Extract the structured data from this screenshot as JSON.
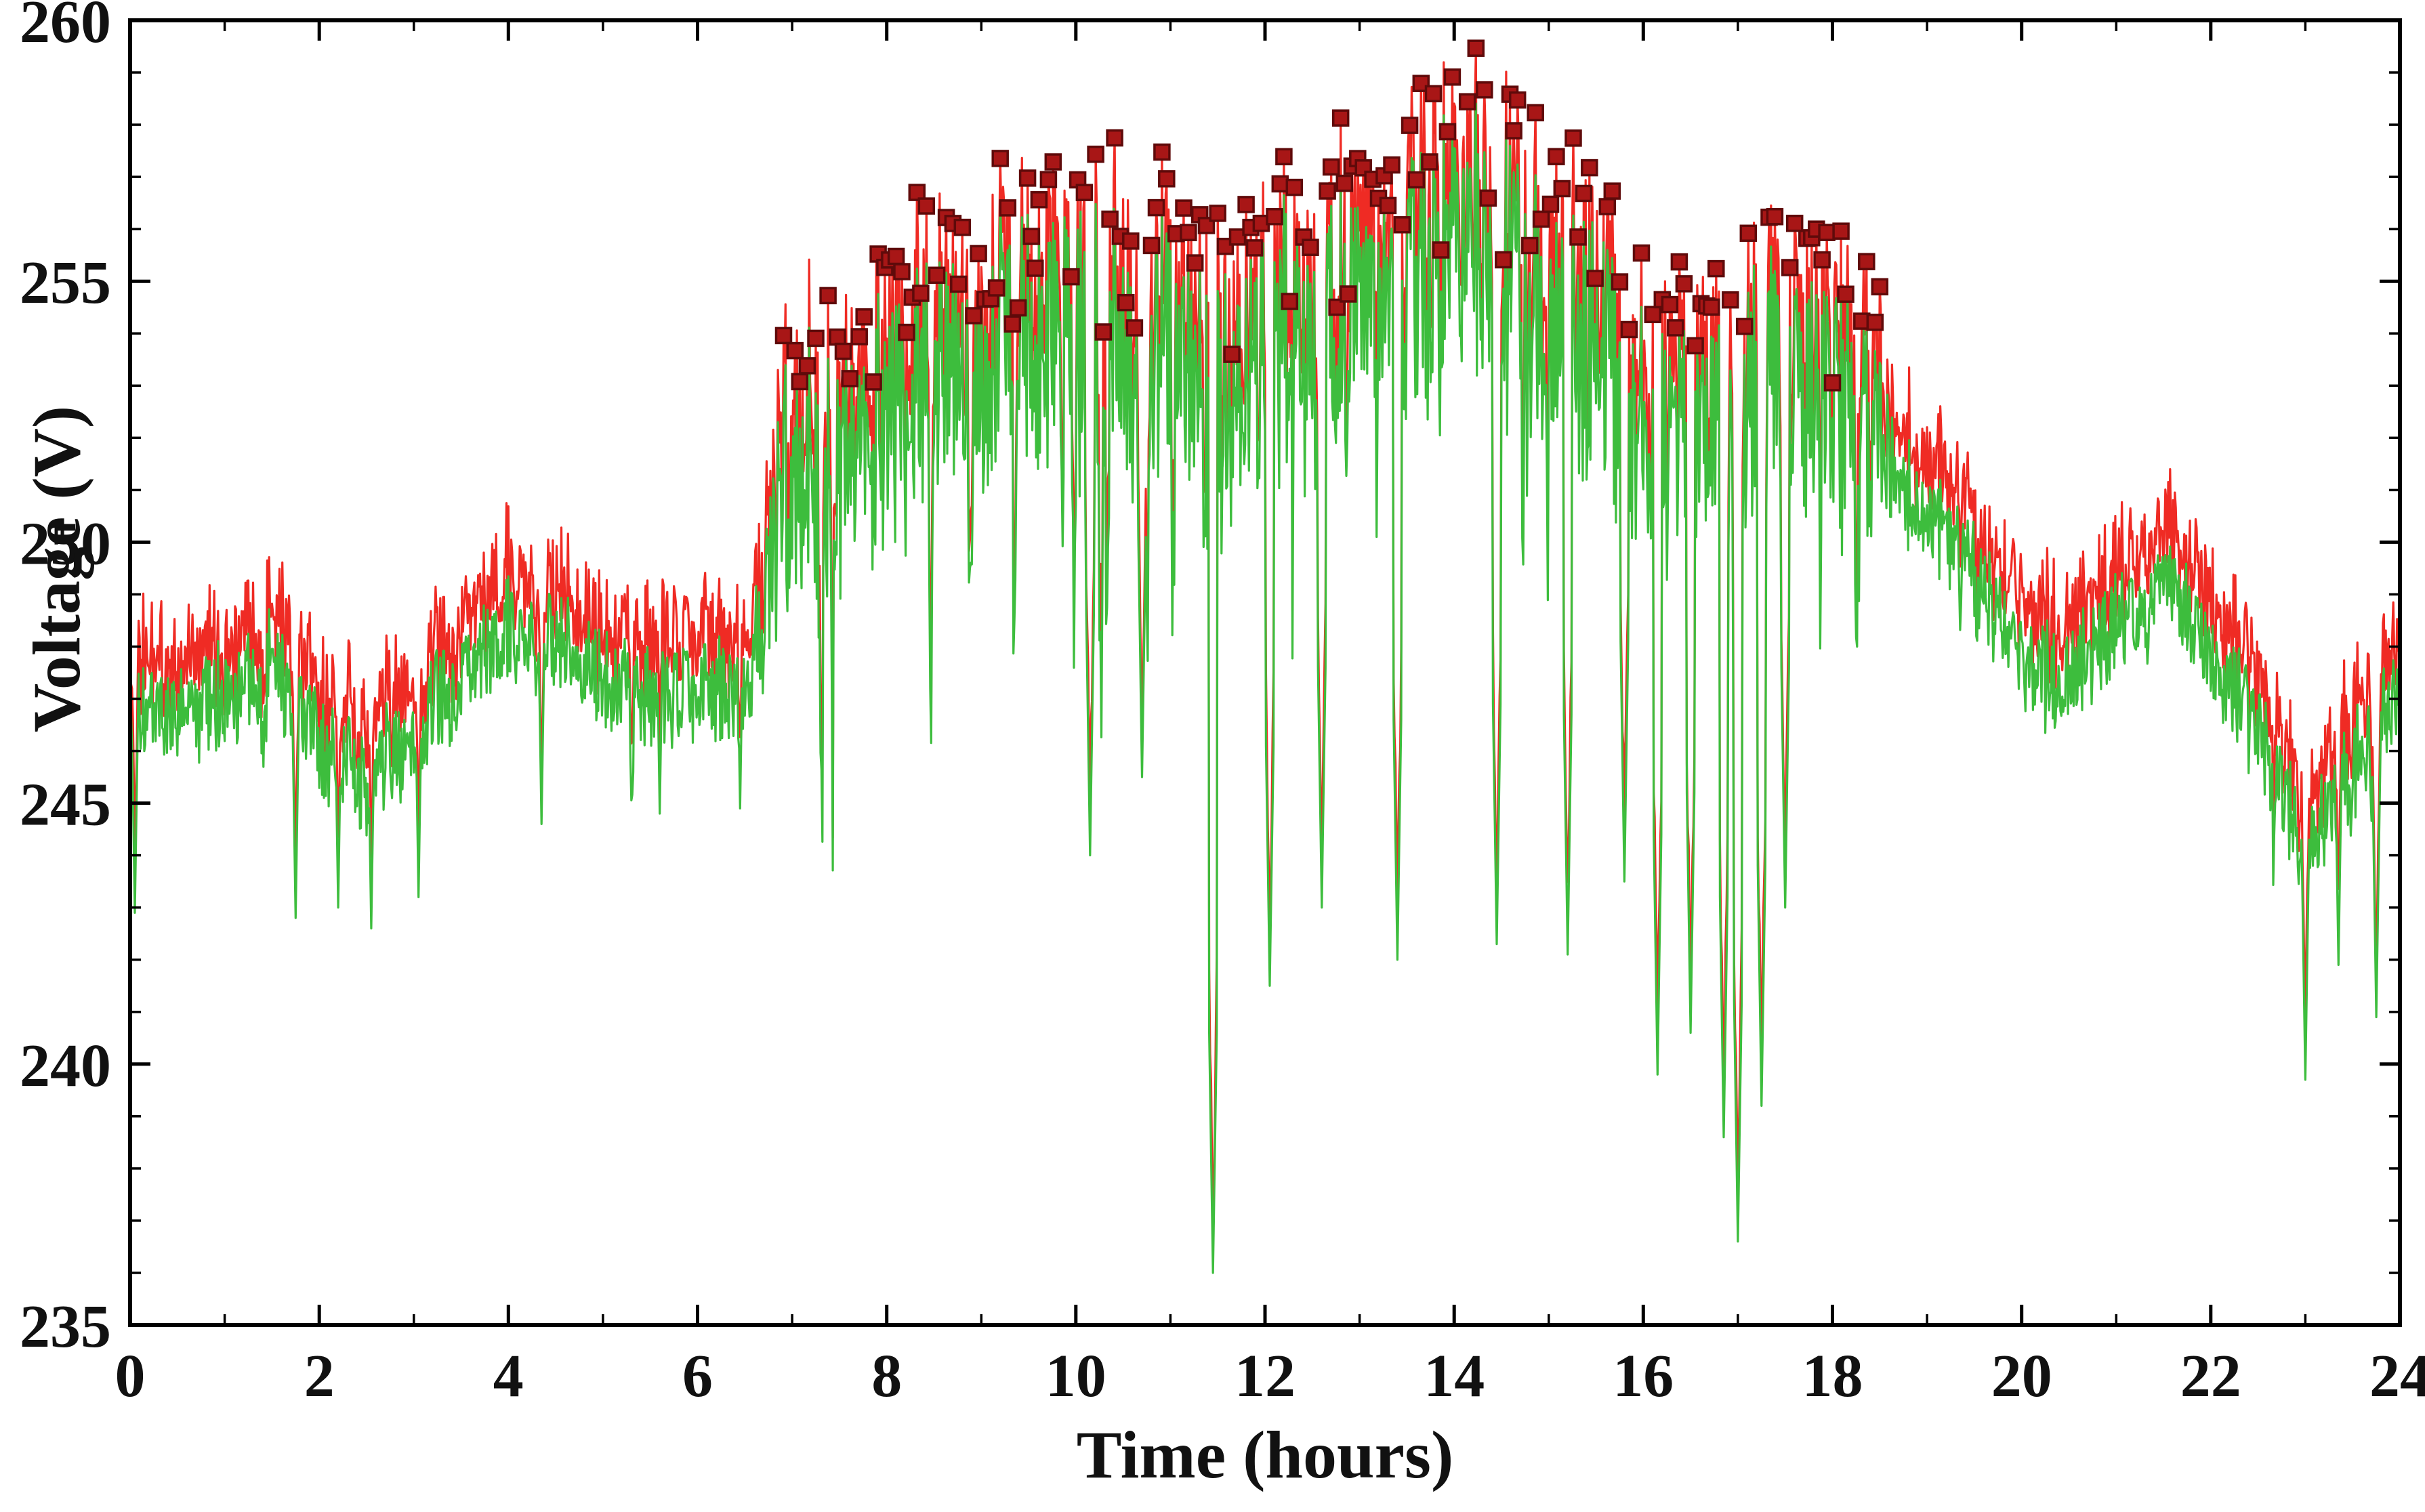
{
  "figure": {
    "background": "#ffffff",
    "frame_color": "#000000",
    "tick_color": "#000000",
    "label_color": "#111111"
  },
  "chart_data": {
    "type": "line",
    "title": "",
    "xlabel": "Time (hours)",
    "ylabel": "Voltage (V)",
    "xlim": [
      0,
      24
    ],
    "ylim": [
      235,
      260
    ],
    "grid": false,
    "legend": "none",
    "xticks": {
      "major": [
        0,
        2,
        4,
        6,
        8,
        10,
        12,
        14,
        16,
        18,
        20,
        22,
        24
      ],
      "minor_step": 1
    },
    "yticks": {
      "major": [
        235,
        240,
        245,
        250,
        255,
        260
      ],
      "minor_step": 1
    },
    "series": [
      {
        "name": "upper-envelope-line",
        "color": "#ef2b24",
        "width": 3.2
      },
      {
        "name": "voltage-line",
        "color": "#3dbd3d",
        "width": 3.2
      },
      {
        "name": "peak-markers",
        "color": "#a81616",
        "edge": "#5f0a0a",
        "shape": "square",
        "size": 22,
        "threshold": 253.0,
        "x_range": [
          6.9,
          18.55
        ]
      }
    ],
    "baseline": {
      "x": [
        0,
        0.5,
        1,
        1.5,
        2,
        2.5,
        3,
        3.5,
        4,
        4.5,
        5,
        5.5,
        6,
        6.5,
        7,
        7.5,
        8,
        8.5,
        9,
        9.5,
        10,
        10.5,
        11,
        11.5,
        12,
        12.5,
        13,
        13.5,
        14,
        14.5,
        15,
        15.5,
        16,
        16.5,
        17,
        17.5,
        18,
        18.5,
        19,
        19.5,
        20,
        20.5,
        21,
        21.5,
        22,
        22.5,
        23,
        23.5,
        24
      ],
      "v": [
        246.8,
        246.6,
        247.0,
        247.6,
        246.2,
        245.3,
        246.4,
        247.3,
        248.3,
        248.0,
        247.4,
        246.9,
        247.2,
        247.0,
        251.2,
        250.6,
        252.4,
        253.2,
        253.5,
        254.3,
        253.8,
        253.2,
        253.8,
        252.6,
        254.2,
        253.8,
        254.3,
        254.9,
        255.8,
        255.2,
        254.3,
        253.4,
        252.4,
        251.9,
        252.3,
        253.3,
        252.6,
        251.8,
        250.4,
        249.7,
        247.5,
        247.4,
        248.3,
        249.4,
        247.9,
        246.4,
        244.1,
        245.6,
        247.4
      ]
    },
    "noise": {
      "dt": 0.01,
      "base_amp": 1.2,
      "mid_amp": 3.2,
      "mid_start": 6.9,
      "mid_end": 18.35,
      "ramp": 0.35,
      "spike_prob_base": 0.007,
      "spike_prob_mid": 0.03,
      "spike_depth_base": [
        1.0,
        2.2
      ],
      "spike_depth_mid": [
        2.0,
        6.0
      ],
      "extra_deep_prob": 0.15,
      "extra_deep": 4.0,
      "red_offset": [
        0.5,
        1.5
      ]
    },
    "deep_spikes": [
      [
        0.05,
        242.9
      ],
      [
        1.75,
        242.8
      ],
      [
        2.2,
        243.0
      ],
      [
        2.55,
        242.6
      ],
      [
        3.05,
        243.2
      ],
      [
        4.35,
        244.6
      ],
      [
        5.6,
        244.8
      ],
      [
        6.45,
        244.9
      ],
      [
        10.15,
        244.0
      ],
      [
        10.7,
        245.5
      ],
      [
        11.45,
        236.0
      ],
      [
        12.05,
        241.5
      ],
      [
        12.6,
        243.0
      ],
      [
        13.4,
        242.0
      ],
      [
        14.45,
        242.3
      ],
      [
        15.2,
        242.1
      ],
      [
        15.8,
        243.5
      ],
      [
        16.15,
        239.8
      ],
      [
        16.5,
        240.6
      ],
      [
        16.85,
        238.6
      ],
      [
        17.0,
        236.6
      ],
      [
        17.25,
        239.2
      ],
      [
        17.5,
        243.0
      ],
      [
        23.0,
        239.7
      ],
      [
        23.35,
        241.9
      ],
      [
        23.75,
        240.9
      ]
    ]
  }
}
